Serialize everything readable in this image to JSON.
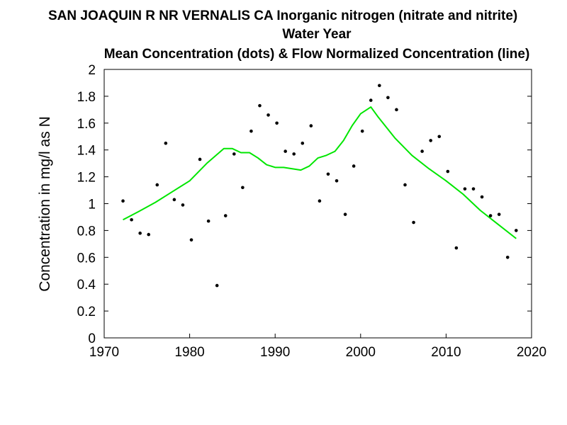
{
  "chart_data": {
    "type": "scatter",
    "title_lines": [
      "SAN JOAQUIN R NR VERNALIS CA   Inorganic nitrogen (nitrate and nitrite)",
      "Water Year",
      "Mean Concentration (dots) & Flow Normalized Concentration (line)"
    ],
    "xlabel": "",
    "ylabel": "Concentration in mg/l as N",
    "xlim": [
      1970,
      2020
    ],
    "ylim": [
      0,
      2
    ],
    "xticks": [
      "1970",
      "1980",
      "1990",
      "2000",
      "2010",
      "2020"
    ],
    "yticks": [
      "0",
      "0.2",
      "0.4",
      "0.6",
      "0.8",
      "1",
      "1.2",
      "1.4",
      "1.6",
      "1.8",
      "2"
    ],
    "grid": false,
    "line_color": "#00e600",
    "dot_color": "#000000",
    "series": [
      {
        "type": "scatter",
        "x": [
          1972.2,
          1973.2,
          1974.2,
          1975.2,
          1976.2,
          1977.2,
          1978.2,
          1979.2,
          1980.2,
          1981.2,
          1982.2,
          1983.2,
          1984.2,
          1985.2,
          1986.2,
          1987.2,
          1988.2,
          1989.2,
          1990.2,
          1991.2,
          1992.2,
          1993.2,
          1994.2,
          1995.2,
          1996.2,
          1997.2,
          1998.2,
          1999.2,
          2000.2,
          2001.2,
          2002.2,
          2003.2,
          2004.2,
          2005.2,
          2006.2,
          2007.2,
          2008.2,
          2009.2,
          2010.2,
          2011.2,
          2012.2,
          2013.2,
          2014.2,
          2015.2,
          2016.2,
          2017.2,
          2018.2
        ],
        "y": [
          1.02,
          0.88,
          0.78,
          0.77,
          1.14,
          1.45,
          1.03,
          0.99,
          0.73,
          1.33,
          0.87,
          0.39,
          0.91,
          1.37,
          1.12,
          1.54,
          1.73,
          1.66,
          1.6,
          1.39,
          1.37,
          1.45,
          1.58,
          1.02,
          1.22,
          1.17,
          0.92,
          1.28,
          1.54,
          1.77,
          1.88,
          1.79,
          1.7,
          1.14,
          0.86,
          1.39,
          1.47,
          1.5,
          1.24,
          0.67,
          1.11,
          1.11,
          1.05,
          0.91,
          0.92,
          0.6,
          0.8
        ]
      },
      {
        "type": "line",
        "x": [
          1972.2,
          1974,
          1976,
          1978,
          1980,
          1982,
          1984,
          1985,
          1986,
          1987,
          1988,
          1989,
          1990,
          1991,
          1992,
          1993,
          1994,
          1995,
          1996,
          1997,
          1998,
          1999,
          2000,
          2001.2,
          2002,
          2004,
          2006,
          2008,
          2010,
          2012,
          2014,
          2016,
          2018.2
        ],
        "y": [
          0.88,
          0.94,
          1.01,
          1.09,
          1.17,
          1.3,
          1.41,
          1.41,
          1.38,
          1.38,
          1.34,
          1.29,
          1.27,
          1.27,
          1.26,
          1.25,
          1.28,
          1.34,
          1.36,
          1.39,
          1.47,
          1.58,
          1.67,
          1.72,
          1.65,
          1.49,
          1.36,
          1.26,
          1.17,
          1.07,
          0.95,
          0.85,
          0.74
        ]
      }
    ]
  }
}
